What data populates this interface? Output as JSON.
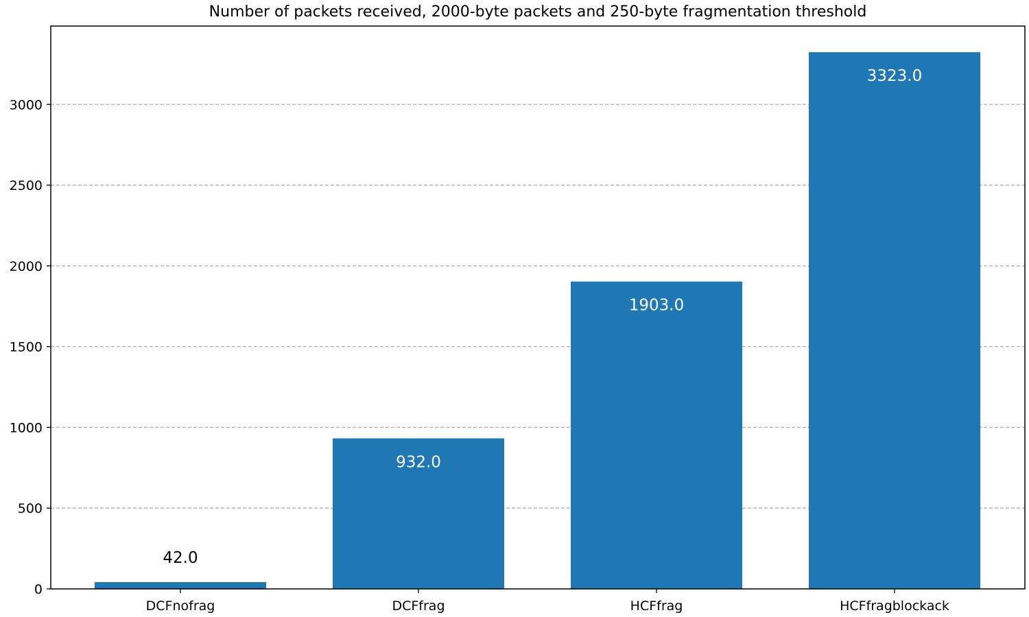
{
  "chart_data": {
    "type": "bar",
    "title": "Number of packets received, 2000-byte packets and 250-byte fragmentation threshold",
    "xlabel": "",
    "ylabel": "",
    "categories": [
      "DCFnofrag",
      "DCFfrag",
      "HCFfrag",
      "HCFfragblockack"
    ],
    "values": [
      42.0,
      932.0,
      1903.0,
      3323.0
    ],
    "value_labels": [
      "42.0",
      "932.0",
      "1903.0",
      "3323.0"
    ],
    "ylim": [
      0,
      3485
    ],
    "yticks": [
      0,
      500,
      1000,
      1500,
      2000,
      2500,
      3000
    ],
    "ytick_labels": [
      "0",
      "500",
      "1000",
      "1500",
      "2000",
      "2500",
      "3000"
    ],
    "grid": "y-dashed",
    "bar_color": "#1f77b4"
  }
}
